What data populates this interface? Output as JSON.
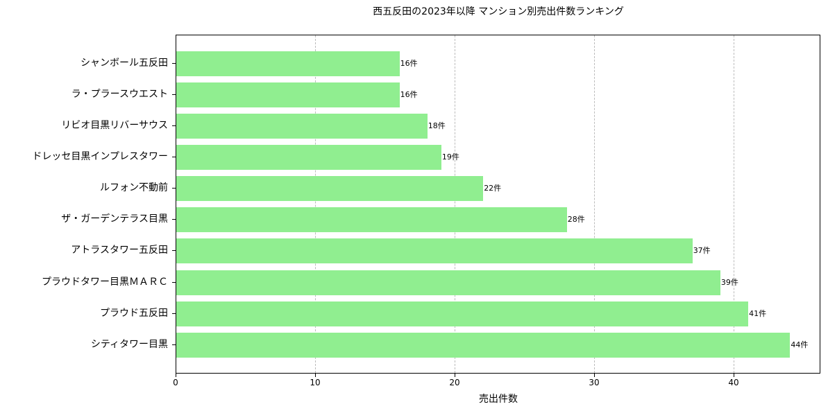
{
  "chart_data": {
    "type": "bar",
    "orientation": "horizontal",
    "title": "西五反田の2023年以降 マンション別売出件数ランキング",
    "xlabel": "売出件数",
    "ylabel": "",
    "xlim": [
      0,
      46.2
    ],
    "xticks": [
      0,
      10,
      20,
      30,
      40
    ],
    "grid": {
      "x": true,
      "style": "dashed"
    },
    "bar_color": "#90ee90",
    "value_suffix": "件",
    "categories": [
      "シャンボール五反田",
      "ラ・プラースウエスト",
      "リビオ目黒リバーサウス",
      "ドレッセ目黒インプレスタワー",
      "ルフォン不動前",
      "ザ・ガーデンテラス目黒",
      "アトラスタワー五反田",
      "プラウドタワー目黒ＭＡＲＣ",
      "プラウド五反田",
      "シティタワー目黒"
    ],
    "values": [
      16,
      16,
      18,
      19,
      22,
      28,
      37,
      39,
      41,
      44
    ],
    "value_labels": [
      "16件",
      "16件",
      "18件",
      "19件",
      "22件",
      "28件",
      "37件",
      "39件",
      "41件",
      "44件"
    ]
  }
}
